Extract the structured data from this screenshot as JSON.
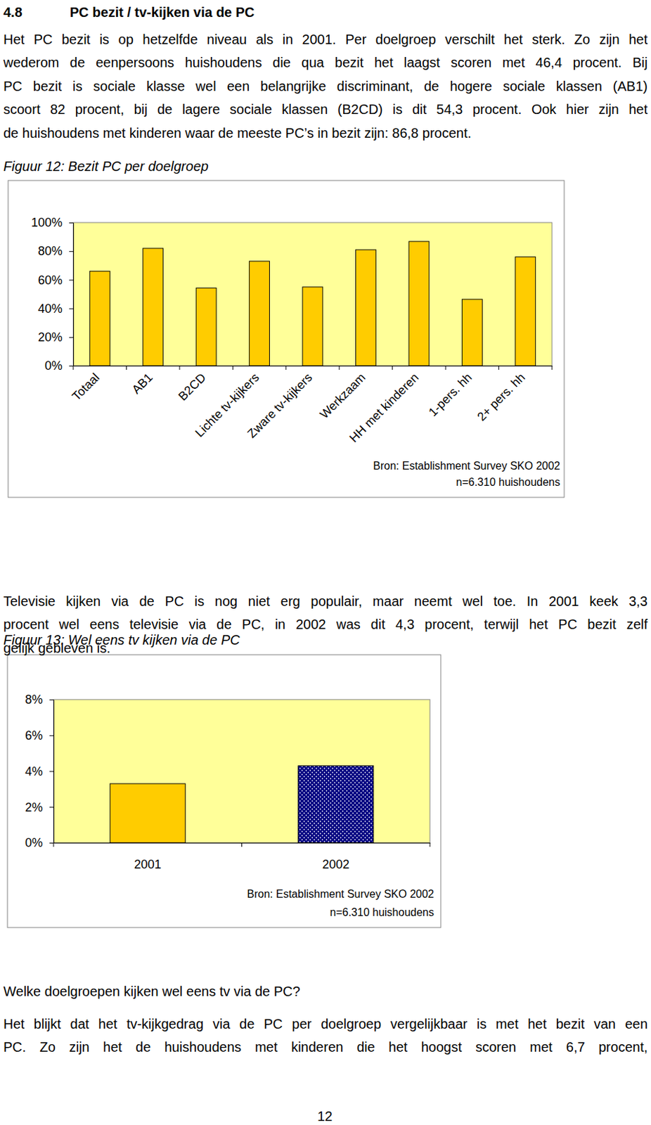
{
  "heading": {
    "number": "4.8",
    "title": "PC bezit / tv-kijken via de PC"
  },
  "paragraphs": [
    [
      "Het PC bezit is op hetzelfde niveau als in 2001. Per doelgroep verschilt het sterk. Zo zijn het",
      "wederom de eenpersoons huishoudens die qua bezit het laagst scoren met 46,4 procent. Bij",
      "PC bezit is sociale klasse wel een belangrijke discriminant, de hogere sociale klassen (AB1)",
      "scoort 82 procent, bij de lagere sociale klassen (B2CD) is dit 54,3 procent. Ook hier zijn het",
      "de huishoudens met kinderen waar de meeste PC’s in bezit zijn: 86,8 procent."
    ],
    [
      "Televisie kijken via de PC is nog niet erg populair, maar neemt wel toe. In 2001 keek 3,3",
      "procent wel eens televisie via de PC, in 2002 was dit 4,3 procent, terwijl het PC bezit zelf",
      "gelijk gebleven is."
    ],
    [
      "Het blijkt dat het tv-kijkgedrag via de PC per doelgroep vergelijkbaar is met het bezit van een",
      "PC. Zo zijn het de huishoudens met kinderen die het hoogst scoren met 6,7 procent,"
    ]
  ],
  "subheading": "Welke doelgroepen kijken wel eens tv via de PC?",
  "page_number": "12",
  "chart_data": [
    {
      "type": "bar",
      "title": "Figuur 12: Bezit PC per doelgroep",
      "categories": [
        "Totaal",
        "AB1",
        "B2CD",
        "Lichte tv-kijkers",
        "Zware tv-kijkers",
        "Werkzaam",
        "HH met kinderen",
        "1-pers. hh",
        "2+ pers. hh"
      ],
      "values": [
        66,
        82,
        54.3,
        73,
        55,
        81,
        86.8,
        46.4,
        76
      ],
      "color": "#FFCC00",
      "ylim": [
        0,
        100
      ],
      "yticks": [
        {
          "value": 0,
          "label": "0%"
        },
        {
          "value": 20,
          "label": "20%"
        },
        {
          "value": 40,
          "label": "40%"
        },
        {
          "value": 60,
          "label": "60%"
        },
        {
          "value": 80,
          "label": "80%"
        },
        {
          "value": 100,
          "label": "100%"
        }
      ],
      "grid": false,
      "annotations": [
        "Bron: Establishment Survey SKO 2002",
        "n=6.310 huishoudens"
      ]
    },
    {
      "type": "bar",
      "title": "Figuur 13: Wel eens tv kijken via de PC",
      "categories": [
        "2001",
        "2002"
      ],
      "values": [
        3.3,
        4.3
      ],
      "colors": [
        "#FFCC00",
        "#000080"
      ],
      "ylim": [
        0,
        8
      ],
      "yticks": [
        {
          "value": 0,
          "label": "0%"
        },
        {
          "value": 2,
          "label": "2%"
        },
        {
          "value": 4,
          "label": "4%"
        },
        {
          "value": 6,
          "label": "6%"
        },
        {
          "value": 8,
          "label": "8%"
        }
      ],
      "grid": false,
      "annotations": [
        "Bron: Establishment Survey SKO 2002",
        "n=6.310 huishoudens"
      ]
    }
  ]
}
